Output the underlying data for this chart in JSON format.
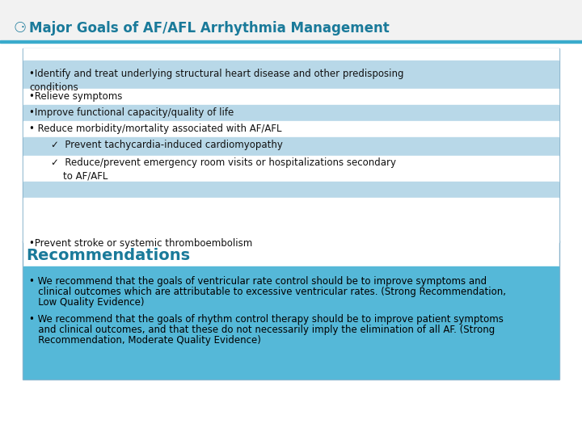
{
  "title": "Major Goals of AF/AFL Arrhythmia Management",
  "title_color": "#1a7a9a",
  "title_fontsize": 12,
  "header_icon": "⚆",
  "bg_color": "#ffffff",
  "header_bg": "#f2f2f2",
  "header_line_color": "#3aabcc",
  "blue_row_color": "#b8d8e8",
  "white_row_color": "#ffffff",
  "box_border_color": "#8ab4cc",
  "text_color": "#111111",
  "text_fontsize": 8.5,
  "recommendations_title": "Recommendations",
  "recommendations_title_color": "#1a7a9a",
  "recommendations_title_fontsize": 14,
  "recommendations_bg": "#55b8d8",
  "rec_text_color": "#000000",
  "rec1_lines": [
    "• We recommend that the goals of ventricular rate control should be to improve symptoms and",
    "   clinical outcomes which are attributable to excessive ventricular rates. (Strong Recommendation,",
    "   Low Quality Evidence)"
  ],
  "rec2_lines": [
    "• We recommend that the goals of rhythm control therapy should be to improve patient symptoms",
    "   and clinical outcomes, and that these do not necessarily imply the elimination of all AF. (Strong",
    "   Recommendation, Moderate Quality Evidence)"
  ]
}
